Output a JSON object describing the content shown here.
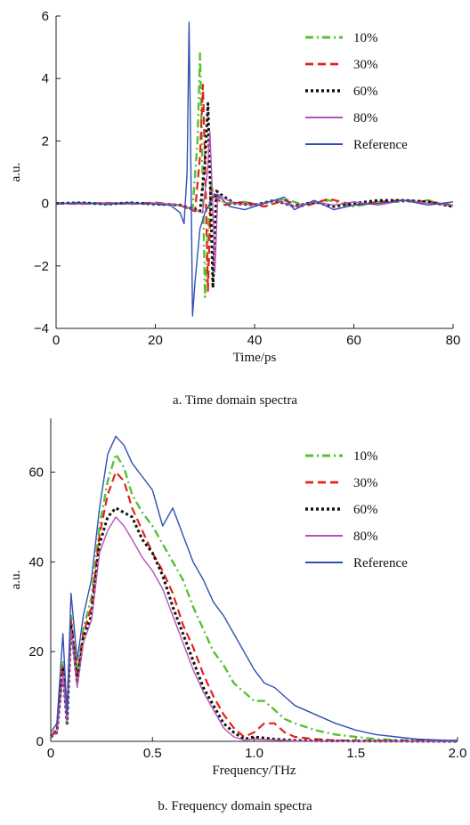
{
  "captions": {
    "a": "a. Time domain spectra",
    "b": "b. Frequency domain spectra"
  },
  "chart_data": [
    {
      "type": "line",
      "xlabel": "Time/ps",
      "ylabel": "a.u.",
      "xlim": [
        0,
        80
      ],
      "ylim": [
        -4,
        6
      ],
      "xticks": [
        0,
        20,
        40,
        60,
        80
      ],
      "yticks": [
        -4,
        -2,
        0,
        2,
        4,
        6
      ],
      "legend_position": "top-right",
      "series": [
        {
          "name": "10%",
          "color": "#55c232",
          "dash": "dashdot",
          "x": [
            0,
            5,
            10,
            15,
            20,
            25,
            27.5,
            28.5,
            29.0,
            29.5,
            30.0,
            30.6,
            31.2,
            32,
            34,
            38,
            42,
            46,
            50,
            55,
            60,
            65,
            70,
            75,
            80
          ],
          "y": [
            0,
            0.02,
            -0.02,
            0.02,
            -0.03,
            -0.05,
            -0.2,
            2.0,
            4.8,
            1.0,
            -3.0,
            -1.0,
            0.6,
            0.25,
            0.0,
            0.05,
            -0.1,
            0.15,
            -0.05,
            0.1,
            -0.1,
            0.05,
            0.05,
            0.1,
            -0.1
          ]
        },
        {
          "name": "30%",
          "color": "#e2231a",
          "dash": "dashed",
          "x": [
            0,
            5,
            10,
            15,
            20,
            25,
            28,
            29.0,
            29.6,
            30.1,
            30.6,
            31.2,
            32,
            34,
            38,
            42,
            46,
            50,
            55,
            60,
            65,
            70,
            75,
            80
          ],
          "y": [
            0,
            -0.02,
            0.02,
            -0.02,
            0.03,
            -0.06,
            -0.25,
            1.5,
            3.8,
            0.8,
            -2.8,
            0.5,
            0.2,
            -0.05,
            0.05,
            -0.1,
            0.1,
            -0.1,
            0.15,
            -0.05,
            0.05,
            0.1,
            0.05,
            -0.05
          ]
        },
        {
          "name": "60%",
          "color": "#111111",
          "dash": "dotted",
          "x": [
            0,
            5,
            10,
            15,
            20,
            25,
            29,
            30.0,
            30.6,
            31.1,
            31.6,
            32.3,
            33.5,
            36,
            40,
            44,
            48,
            52,
            56,
            60,
            65,
            70,
            75,
            80
          ],
          "y": [
            0,
            0.02,
            -0.02,
            0.02,
            -0.02,
            -0.05,
            -0.25,
            1.3,
            3.2,
            0.4,
            -2.7,
            0.4,
            0.25,
            0.0,
            -0.05,
            0.1,
            -0.1,
            0.05,
            -0.1,
            0.0,
            0.1,
            0.1,
            0.05,
            -0.1
          ]
        },
        {
          "name": "80%",
          "color": "#b454b4",
          "dash": "solid",
          "x": [
            0,
            5,
            10,
            15,
            20,
            25,
            29.5,
            30.5,
            31.0,
            31.5,
            32.0,
            32.6,
            34,
            36,
            40,
            44,
            48,
            52,
            56,
            60,
            65,
            70,
            75,
            80
          ],
          "y": [
            0,
            -0.02,
            0.02,
            -0.02,
            0.02,
            -0.05,
            -0.3,
            1.0,
            2.3,
            0.3,
            -2.2,
            0.3,
            0.15,
            0.0,
            -0.05,
            0.1,
            -0.1,
            0.05,
            -0.05,
            0.05,
            -0.05,
            0.1,
            0.0,
            -0.05
          ]
        },
        {
          "name": "Reference",
          "color": "#2f4fb5",
          "dash": "solid",
          "x": [
            0,
            5,
            10,
            15,
            20,
            23,
            25,
            25.8,
            26.4,
            26.8,
            27.1,
            27.5,
            28.0,
            29,
            30,
            31,
            32,
            33,
            35,
            38,
            42,
            46,
            48,
            52,
            56,
            60,
            65,
            70,
            75,
            80
          ],
          "y": [
            0,
            0.02,
            -0.02,
            0.02,
            -0.02,
            -0.05,
            -0.3,
            -0.65,
            1.0,
            5.8,
            2.0,
            -3.6,
            -2.5,
            -0.8,
            -0.3,
            0.0,
            0.3,
            0.2,
            -0.1,
            -0.2,
            0.0,
            0.2,
            -0.2,
            0.1,
            -0.2,
            -0.05,
            0.0,
            0.1,
            -0.05,
            0.05
          ]
        }
      ]
    },
    {
      "type": "line",
      "xlabel": "Frequency/THz",
      "ylabel": "a.u.",
      "xlim": [
        0,
        2.0
      ],
      "ylim": [
        0,
        72
      ],
      "xticks": [
        0,
        0.5,
        1.0,
        1.5,
        2.0
      ],
      "xtick_labels": [
        "0",
        "0.5",
        "1.0",
        "1.5",
        "2.0"
      ],
      "yticks": [
        0,
        20,
        40,
        60
      ],
      "legend_position": "top-right",
      "series": [
        {
          "name": "10%",
          "color": "#55c232",
          "dash": "dashdot",
          "x": [
            0,
            0.03,
            0.06,
            0.08,
            0.1,
            0.13,
            0.16,
            0.2,
            0.24,
            0.28,
            0.32,
            0.36,
            0.4,
            0.45,
            0.5,
            0.55,
            0.6,
            0.65,
            0.7,
            0.75,
            0.8,
            0.85,
            0.9,
            0.95,
            1.0,
            1.05,
            1.1,
            1.15,
            1.2,
            1.3,
            1.4,
            1.5,
            1.6,
            1.7,
            1.8,
            1.9,
            2.0
          ],
          "y": [
            1,
            3,
            18,
            5,
            28,
            15,
            25,
            32,
            48,
            58,
            64,
            61,
            55,
            51,
            48,
            44,
            40,
            36,
            30,
            25,
            20,
            17,
            13,
            11,
            9,
            9,
            7,
            5,
            4,
            2.5,
            1.5,
            1,
            0.5,
            0.3,
            0.2,
            0.1,
            0.1
          ]
        },
        {
          "name": "30%",
          "color": "#e2231a",
          "dash": "dashed",
          "x": [
            0,
            0.03,
            0.06,
            0.08,
            0.1,
            0.13,
            0.16,
            0.2,
            0.24,
            0.28,
            0.32,
            0.36,
            0.4,
            0.45,
            0.5,
            0.55,
            0.6,
            0.65,
            0.7,
            0.75,
            0.8,
            0.85,
            0.9,
            0.95,
            1.0,
            1.05,
            1.1,
            1.15,
            1.2,
            1.3,
            1.4,
            1.5,
            1.7,
            2.0
          ],
          "y": [
            1,
            3,
            17,
            5,
            27,
            14,
            24,
            30,
            46,
            55,
            60,
            58,
            52,
            47,
            42,
            38,
            33,
            26,
            21,
            15,
            10,
            6,
            3,
            1,
            2,
            4,
            4,
            2,
            1,
            0.5,
            0.2,
            0.1,
            0.1,
            0.05
          ]
        },
        {
          "name": "60%",
          "color": "#111111",
          "dash": "dotted",
          "x": [
            0,
            0.03,
            0.06,
            0.08,
            0.1,
            0.13,
            0.16,
            0.2,
            0.24,
            0.28,
            0.32,
            0.36,
            0.4,
            0.45,
            0.5,
            0.55,
            0.6,
            0.65,
            0.7,
            0.75,
            0.8,
            0.85,
            0.9,
            0.95,
            1.0,
            1.1,
            1.2,
            1.4,
            1.6,
            2.0
          ],
          "y": [
            1,
            2,
            16,
            4,
            26,
            13,
            23,
            28,
            44,
            50,
            52,
            51,
            50,
            45,
            42,
            37,
            30,
            24,
            18,
            12,
            8,
            4,
            2,
            0.5,
            1,
            0.5,
            0.2,
            0.1,
            0.05,
            0
          ]
        },
        {
          "name": "80%",
          "color": "#b454b4",
          "dash": "solid",
          "x": [
            0,
            0.03,
            0.06,
            0.08,
            0.1,
            0.13,
            0.16,
            0.2,
            0.24,
            0.28,
            0.32,
            0.36,
            0.4,
            0.45,
            0.5,
            0.55,
            0.6,
            0.65,
            0.7,
            0.75,
            0.8,
            0.85,
            0.9,
            0.95,
            1.0,
            1.1,
            1.2,
            1.4,
            1.6,
            2.0
          ],
          "y": [
            1,
            2,
            15,
            4,
            25,
            12,
            22,
            27,
            42,
            47,
            50,
            48,
            45,
            41,
            38,
            34,
            28,
            22,
            16,
            11,
            7,
            3,
            1,
            0.3,
            0.5,
            0.3,
            0.1,
            0.05,
            0,
            0
          ]
        },
        {
          "name": "Reference",
          "color": "#2f4fb5",
          "dash": "solid",
          "x": [
            0,
            0.03,
            0.06,
            0.08,
            0.1,
            0.13,
            0.16,
            0.2,
            0.24,
            0.28,
            0.32,
            0.36,
            0.4,
            0.45,
            0.5,
            0.55,
            0.6,
            0.65,
            0.7,
            0.75,
            0.8,
            0.85,
            0.9,
            0.95,
            1.0,
            1.05,
            1.1,
            1.15,
            1.2,
            1.3,
            1.4,
            1.5,
            1.6,
            1.7,
            1.8,
            1.9,
            2.0
          ],
          "y": [
            2,
            4,
            24,
            6,
            33,
            18,
            28,
            36,
            52,
            64,
            68,
            66,
            62,
            59,
            56,
            48,
            52,
            46,
            40,
            36,
            31,
            28,
            24,
            20,
            16,
            13,
            12,
            10,
            8,
            6,
            4,
            2.5,
            1.5,
            1,
            0.5,
            0.3,
            0.2
          ]
        }
      ]
    }
  ]
}
